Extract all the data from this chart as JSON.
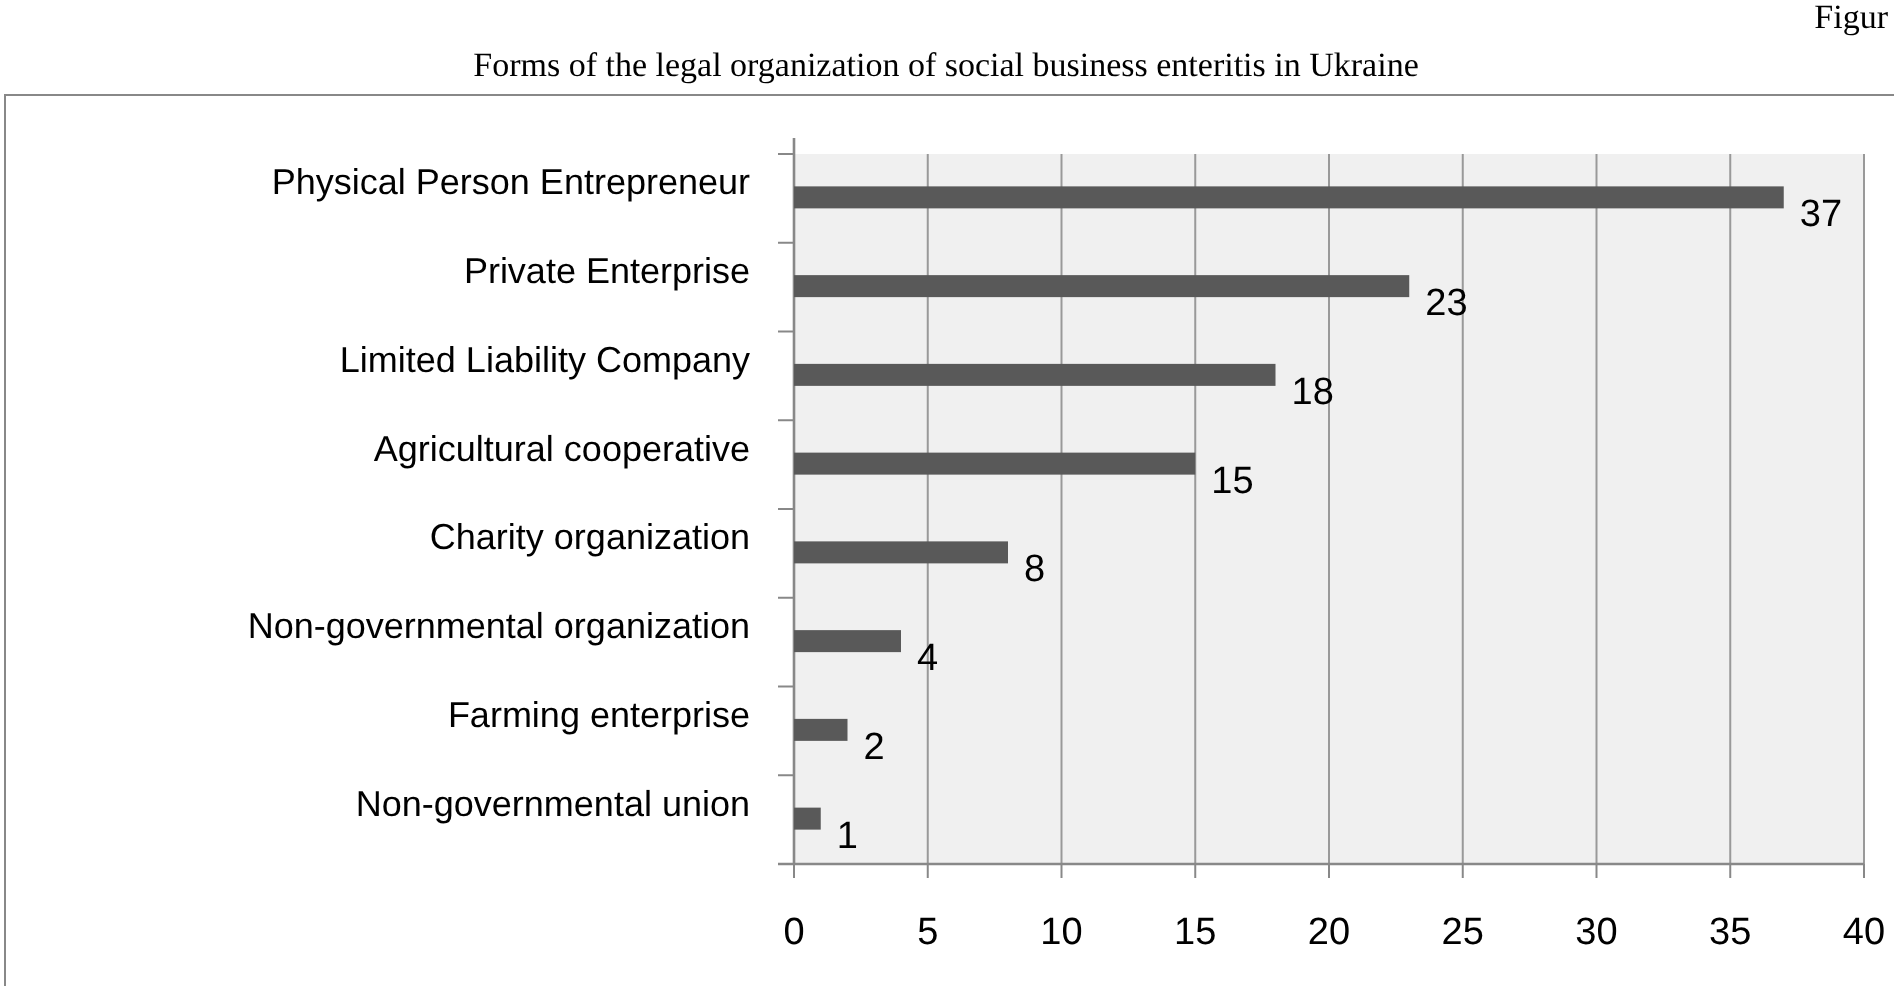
{
  "chart_data": {
    "type": "bar",
    "orientation": "horizontal",
    "title": "Forms of the legal organization of social business enteritis in Ukraine",
    "categories": [
      "Physical Person Entrepreneur",
      "Private Enterprise",
      "Limited Liability Company",
      "Agricultural cooperative",
      "Charity organization",
      "Non-governmental organization",
      "Farming enterprise",
      "Non-governmental union"
    ],
    "values": [
      37,
      23,
      18,
      15,
      8,
      4,
      2,
      1
    ],
    "color": "#595959",
    "data_labels": true,
    "xlim": [
      0,
      40
    ],
    "xticks": [
      0,
      5,
      10,
      15,
      20,
      25,
      30,
      35,
      40
    ],
    "grid": "x",
    "annotations": [
      "Figur"
    ]
  }
}
